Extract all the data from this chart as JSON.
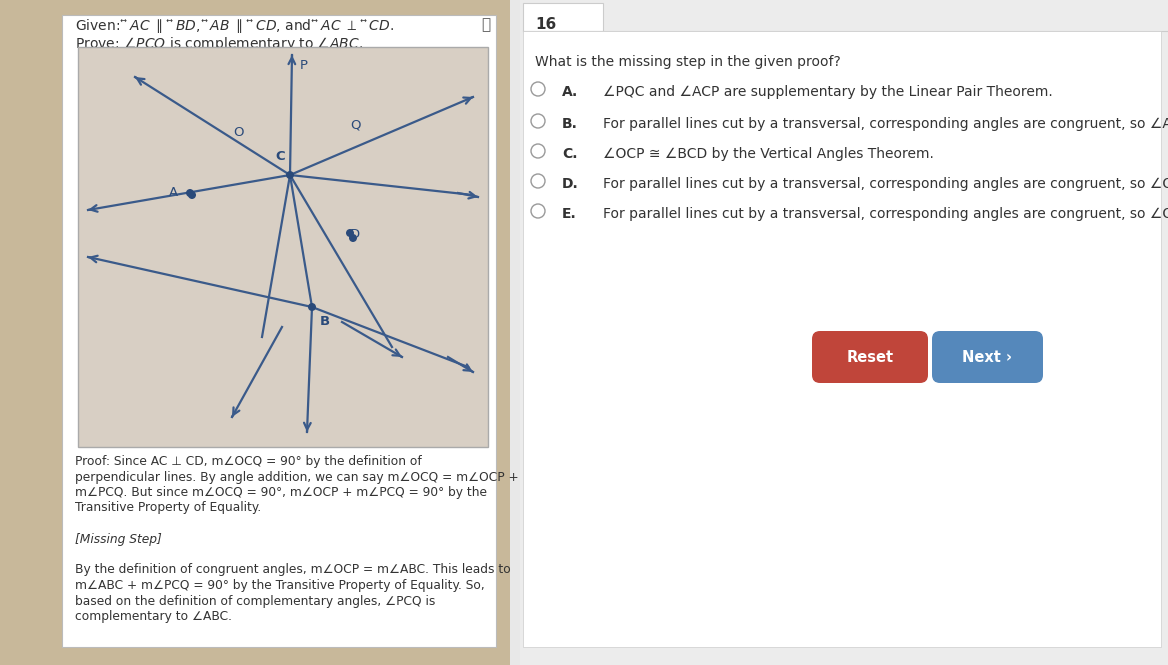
{
  "bg_left": "#c8b89a",
  "bg_right": "#e8e8e8",
  "card_color": "#ffffff",
  "figure_bg": "#d4c9b5",
  "line_color": "#3a5a8a",
  "dot_color": "#2a4a7a",
  "label_color": "#2a4a7a",
  "text_color": "#333333",
  "given_text": "Given: AC ∥ BD, AB ∥ CD, and AC ⊥ CD.",
  "prove_text": "Prove: ∠PCQ is complementary to ∠ABC.",
  "header_line": "16",
  "question_text": "What is the missing step in the given proof?",
  "choices": [
    [
      "A.",
      "∠PQC and ∠ACP are supplementary by the Linear Pair Theorem."
    ],
    [
      "B.",
      "For parallel lines cut by a transversal, corresponding angles are congruent, so ∠ACB ="
    ],
    [
      "C.",
      "∠OCP ≅ ∠BCD by the Vertical Angles Theorem."
    ],
    [
      "D.",
      "For parallel lines cut by a transversal, corresponding angles are congruent, so ∠OCP ="
    ],
    [
      "E.",
      "For parallel lines cut by a transversal, corresponding angles are congruent, so ∠OCA ="
    ]
  ],
  "proof_lines": [
    "Proof: Since AC ⊥ CD, m∠OCQ = 90° by the definition of",
    "perpendicular lines. By angle addition, we can say m∠OCQ = m∠OCP +",
    "m∠PCQ. But since m∠OCQ = 90°, m∠OCP + m∠PCQ = 90° by the",
    "Transitive Property of Equality.",
    "",
    "[Missing Step]",
    "",
    "By the definition of congruent angles, m∠OCP = m∠ABC. This leads to",
    "m∠ABC + m∠PCQ = 90° by the Transitive Property of Equality. So,",
    "based on the definition of complementary angles, ∠PCQ is",
    "complementary to ∠ABC."
  ],
  "reset_btn_color": "#c0453a",
  "next_btn_color": "#5588bb",
  "reset_label": "Reset",
  "next_label": "Next ›"
}
